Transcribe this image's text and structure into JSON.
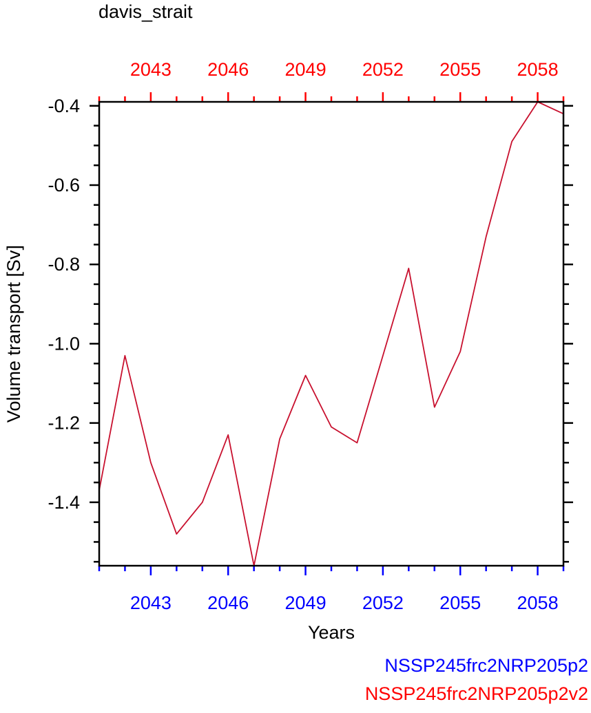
{
  "chart_data": {
    "type": "line",
    "title": "davis_strait",
    "xlabel": "Years",
    "ylabel": "Volume transport [Sv]",
    "xlim": [
      2041,
      2059
    ],
    "ylim": [
      -1.56,
      -0.39
    ],
    "x_ticks": [
      2043,
      2046,
      2049,
      2052,
      2055,
      2058
    ],
    "y_ticks": [
      -1.4,
      -1.2,
      -1.0,
      -0.8,
      -0.6,
      -0.4
    ],
    "y_tick_labels": [
      "-1.4",
      "-1.2",
      "-1.0",
      "-0.8",
      "-0.6",
      "-0.4"
    ],
    "top_axis_ticks": [
      2043,
      2046,
      2049,
      2052,
      2055,
      2058
    ],
    "colors": {
      "bottom_axis": "#0000ff",
      "top_axis": "#ff0000",
      "line": "#c8102e",
      "frame": "#000000"
    },
    "series": [
      {
        "name": "NSSP245frc2NRP205p2v2",
        "color": "#c8102e",
        "x": [
          2041,
          2042,
          2043,
          2044,
          2045,
          2046,
          2047,
          2048,
          2049,
          2050,
          2051,
          2052,
          2053,
          2054,
          2055,
          2056,
          2057,
          2058,
          2059
        ],
        "y": [
          -1.37,
          -1.03,
          -1.3,
          -1.48,
          -1.4,
          -1.23,
          -1.56,
          -1.24,
          -1.08,
          -1.21,
          -1.25,
          -1.03,
          -0.81,
          -1.16,
          -1.02,
          -0.73,
          -0.49,
          -0.39,
          -0.42
        ]
      }
    ],
    "legend": [
      {
        "label": "NSSP245frc2NRP205p2",
        "color": "#0000ff"
      },
      {
        "label": "NSSP245frc2NRP205p2v2",
        "color": "#ff0000"
      }
    ]
  }
}
